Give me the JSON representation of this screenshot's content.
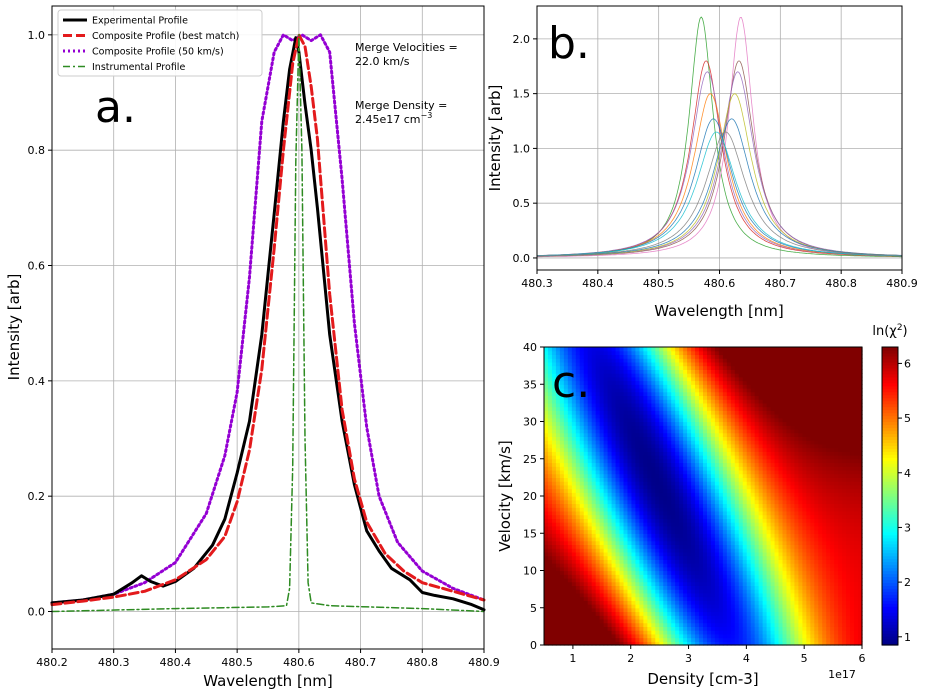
{
  "chart_data": [
    {
      "panel_label": "a.",
      "type": "line",
      "xlabel": "Wavelength [nm]",
      "ylabel": "Intensity [arb]",
      "xlim": [
        480.2,
        480.9
      ],
      "ylim": [
        -0.065,
        1.05
      ],
      "xticks": [
        480.2,
        480.3,
        480.4,
        480.5,
        480.6,
        480.7,
        480.8,
        480.9
      ],
      "xtick_labels": [
        "480.2",
        "480.3",
        "480.4",
        "480.5",
        "480.6",
        "480.7",
        "480.8",
        "480.9"
      ],
      "yticks": [
        0.0,
        0.2,
        0.4,
        0.6,
        0.8,
        1.0
      ],
      "ytick_labels": [
        "0.0",
        "0.2",
        "0.4",
        "0.6",
        "0.8",
        "1.0"
      ],
      "grid": true,
      "legend_position": "top-left",
      "annotations": [
        {
          "lines": [
            "Merge Velocities =",
            "22.0 km/s"
          ]
        },
        {
          "lines": [
            "Merge Density =",
            "2.45e17 cm"
          ],
          "superscript": "−3"
        }
      ],
      "series": [
        {
          "name": "Experimental Profile",
          "color": "#000000",
          "style": "solid",
          "x": [
            480.2,
            480.25,
            480.3,
            480.33,
            480.345,
            480.36,
            480.38,
            480.4,
            480.43,
            480.46,
            480.48,
            480.5,
            480.52,
            480.54,
            480.56,
            480.575,
            480.585,
            480.595,
            480.6,
            480.61,
            480.62,
            480.63,
            480.65,
            480.67,
            480.69,
            480.71,
            480.73,
            480.75,
            480.78,
            480.8,
            480.82,
            480.85,
            480.88,
            480.9
          ],
          "y": [
            0.015,
            0.02,
            0.03,
            0.05,
            0.062,
            0.052,
            0.044,
            0.052,
            0.075,
            0.115,
            0.16,
            0.24,
            0.33,
            0.48,
            0.69,
            0.85,
            0.94,
            0.995,
            0.97,
            0.88,
            0.8,
            0.7,
            0.48,
            0.33,
            0.22,
            0.14,
            0.105,
            0.075,
            0.055,
            0.033,
            0.028,
            0.022,
            0.012,
            0.003
          ]
        },
        {
          "name": "Composite Profile (best match)",
          "color": "#e31a1c",
          "style": "dashed",
          "x": [
            480.2,
            480.25,
            480.3,
            480.35,
            480.4,
            480.45,
            480.48,
            480.5,
            480.52,
            480.54,
            480.56,
            480.575,
            480.59,
            480.6,
            480.61,
            480.62,
            480.63,
            480.65,
            480.67,
            480.69,
            480.71,
            480.74,
            480.77,
            480.8,
            480.85,
            480.9
          ],
          "y": [
            0.012,
            0.018,
            0.025,
            0.035,
            0.055,
            0.09,
            0.13,
            0.19,
            0.28,
            0.42,
            0.63,
            0.8,
            0.95,
            1.0,
            0.98,
            0.91,
            0.82,
            0.55,
            0.35,
            0.23,
            0.155,
            0.1,
            0.07,
            0.05,
            0.035,
            0.02
          ]
        },
        {
          "name": "Composite Profile (50 km/s)",
          "color": "#9400d3",
          "style": "dotted",
          "x": [
            480.2,
            480.25,
            480.3,
            480.35,
            480.4,
            480.45,
            480.48,
            480.5,
            480.52,
            480.54,
            480.56,
            480.575,
            480.59,
            480.605,
            480.62,
            480.635,
            480.65,
            480.67,
            480.69,
            480.71,
            480.73,
            480.76,
            480.8,
            480.85,
            480.9
          ],
          "y": [
            0.015,
            0.02,
            0.03,
            0.05,
            0.085,
            0.17,
            0.27,
            0.38,
            0.58,
            0.85,
            0.97,
            1.0,
            0.99,
            1.0,
            0.99,
            1.0,
            0.97,
            0.75,
            0.5,
            0.32,
            0.2,
            0.12,
            0.07,
            0.04,
            0.02
          ]
        },
        {
          "name": "Instrumental Profile",
          "color": "#2e8b22",
          "style": "dashdot",
          "x": [
            480.2,
            480.4,
            480.55,
            480.58,
            480.585,
            480.59,
            480.595,
            480.6,
            480.605,
            480.61,
            480.615,
            480.62,
            480.65,
            480.8,
            480.9
          ],
          "y": [
            0.0,
            0.005,
            0.008,
            0.01,
            0.04,
            0.25,
            0.78,
            1.0,
            0.8,
            0.3,
            0.05,
            0.015,
            0.01,
            0.005,
            0.0
          ]
        }
      ]
    },
    {
      "panel_label": "b.",
      "type": "line",
      "xlabel": "Wavelength [nm]",
      "ylabel": "Intensity [arb]",
      "xlim": [
        480.3,
        480.9
      ],
      "ylim": [
        -0.11,
        2.3
      ],
      "xticks": [
        480.3,
        480.4,
        480.5,
        480.6,
        480.7,
        480.8,
        480.9
      ],
      "xtick_labels": [
        "480.3",
        "480.4",
        "480.5",
        "480.6",
        "480.7",
        "480.8",
        "480.9"
      ],
      "yticks": [
        0.0,
        0.5,
        1.0,
        1.5,
        2.0
      ],
      "ytick_labels": [
        "0.0",
        "0.5",
        "1.0",
        "1.5",
        "2.0"
      ],
      "grid": true,
      "series": [
        {
          "center": 480.57,
          "amplitude": 2.2,
          "hwhm": 0.024,
          "color": "#2ca02c"
        },
        {
          "center": 480.635,
          "amplitude": 2.2,
          "hwhm": 0.024,
          "color": "#e377c2"
        },
        {
          "center": 480.578,
          "amplitude": 1.8,
          "hwhm": 0.03,
          "color": "#d62728"
        },
        {
          "center": 480.632,
          "amplitude": 1.8,
          "hwhm": 0.03,
          "color": "#8c564b"
        },
        {
          "center": 480.58,
          "amplitude": 1.7,
          "hwhm": 0.032,
          "color": "#9467bd"
        },
        {
          "center": 480.63,
          "amplitude": 1.7,
          "hwhm": 0.032,
          "color": "#9467bd"
        },
        {
          "center": 480.585,
          "amplitude": 1.5,
          "hwhm": 0.034,
          "color": "#ff7f0e"
        },
        {
          "center": 480.625,
          "amplitude": 1.5,
          "hwhm": 0.034,
          "color": "#bcbd22"
        },
        {
          "center": 480.59,
          "amplitude": 1.27,
          "hwhm": 0.038,
          "color": "#1f77b4"
        },
        {
          "center": 480.62,
          "amplitude": 1.27,
          "hwhm": 0.038,
          "color": "#1f77b4"
        },
        {
          "center": 480.595,
          "amplitude": 1.15,
          "hwhm": 0.04,
          "color": "#17becf"
        },
        {
          "center": 480.61,
          "amplitude": 1.15,
          "hwhm": 0.04,
          "color": "#7f7f7f"
        }
      ]
    },
    {
      "panel_label": "c.",
      "type": "heatmap",
      "xlabel": "Density [cm-3]",
      "ylabel": "Velocity [km/s]",
      "x_offset_label": "1e17",
      "xlim": [
        0.5,
        6.0
      ],
      "ylim": [
        0,
        40
      ],
      "xticks": [
        1,
        2,
        3,
        4,
        5,
        6
      ],
      "xtick_labels": [
        "1",
        "2",
        "3",
        "4",
        "5",
        "6"
      ],
      "yticks": [
        0,
        5,
        10,
        15,
        20,
        25,
        30,
        35,
        40
      ],
      "ytick_labels": [
        "0",
        "5",
        "10",
        "15",
        "20",
        "25",
        "30",
        "35",
        "40"
      ],
      "colormap": "jet",
      "colorbar_label": "ln(χ",
      "colorbar_label_sup": "2",
      "colorbar_label_end": ")",
      "colorbar_range": [
        0.85,
        6.3
      ],
      "colorbar_ticks": [
        1,
        2,
        3,
        4,
        5,
        6
      ],
      "colorbar_tick_labels": [
        "1",
        "2",
        "3",
        "4",
        "5",
        "6"
      ],
      "minimum": {
        "density": 2.45,
        "velocity": 22.0,
        "value": 0.9
      }
    }
  ]
}
